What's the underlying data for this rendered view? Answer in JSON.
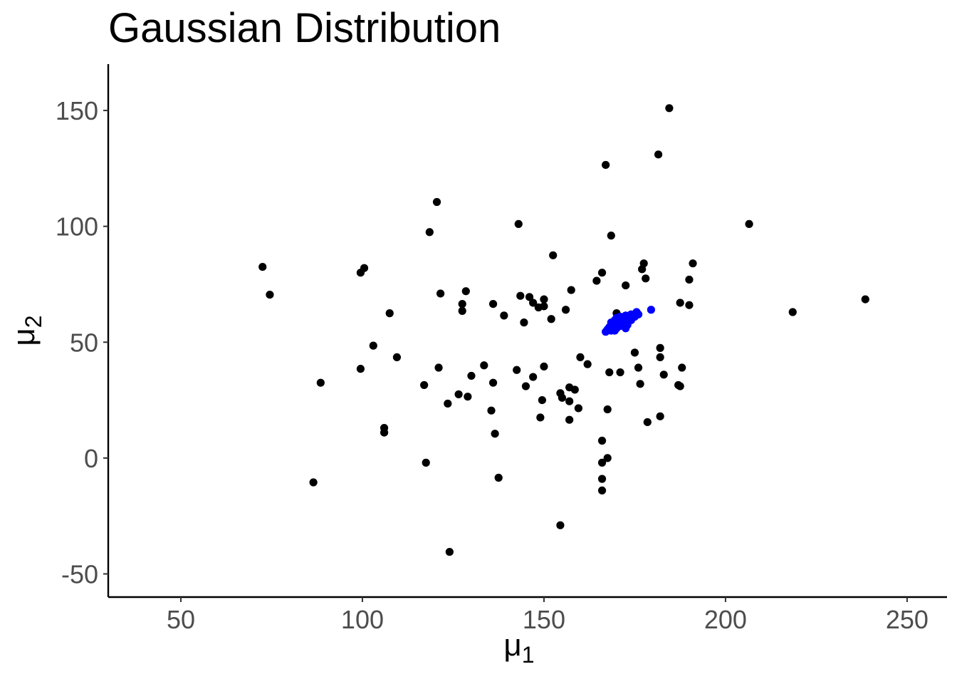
{
  "chart_data": {
    "type": "scatter",
    "title": "Gaussian Distribution",
    "xlabel": {
      "symbol": "μ",
      "subscript": "1"
    },
    "ylabel": {
      "symbol": "μ",
      "subscript": "2"
    },
    "xlim": [
      30,
      261
    ],
    "ylim": [
      -60,
      170
    ],
    "xticks": [
      50,
      100,
      150,
      200,
      250
    ],
    "xtick_labels": [
      "50",
      "100",
      "150",
      "200",
      "250"
    ],
    "yticks": [
      -50,
      0,
      50,
      100,
      150
    ],
    "ytick_labels": [
      "-50",
      "0",
      "50",
      "100",
      "150"
    ],
    "grid": false,
    "legend": "none",
    "series": [
      {
        "color": "#000000",
        "points": [
          [
            184.5,
            151
          ],
          [
            181.5,
            131
          ],
          [
            167,
            126.5
          ],
          [
            120.5,
            110.5
          ],
          [
            143,
            101
          ],
          [
            206.5,
            101
          ],
          [
            118.5,
            97.5
          ],
          [
            168.5,
            96
          ],
          [
            152.5,
            87.5
          ],
          [
            177.5,
            84
          ],
          [
            191,
            84
          ],
          [
            72.5,
            82.5
          ],
          [
            100.5,
            82
          ],
          [
            99.5,
            80
          ],
          [
            177,
            81.5
          ],
          [
            166,
            80
          ],
          [
            178,
            77.5
          ],
          [
            190,
            77
          ],
          [
            164.5,
            76.5
          ],
          [
            172.5,
            74.5
          ],
          [
            157.5,
            72.5
          ],
          [
            128.5,
            72
          ],
          [
            121.5,
            71
          ],
          [
            74.5,
            70.5
          ],
          [
            143.5,
            70
          ],
          [
            146,
            69.5
          ],
          [
            150,
            68.5
          ],
          [
            238.5,
            68.5
          ],
          [
            147,
            67
          ],
          [
            187.5,
            67
          ],
          [
            127.5,
            66.5
          ],
          [
            136,
            66.5
          ],
          [
            148.5,
            65
          ],
          [
            150,
            65.5
          ],
          [
            190,
            66
          ],
          [
            127.5,
            63.5
          ],
          [
            156,
            64
          ],
          [
            107.5,
            62.5
          ],
          [
            218.5,
            63
          ],
          [
            170,
            62.5
          ],
          [
            139,
            61.5
          ],
          [
            152,
            60
          ],
          [
            144.5,
            58.5
          ],
          [
            103,
            48.5
          ],
          [
            182,
            47.5
          ],
          [
            175,
            45.5
          ],
          [
            109.5,
            43.5
          ],
          [
            160,
            43.5
          ],
          [
            182,
            43.5
          ],
          [
            162,
            40.5
          ],
          [
            133.5,
            40
          ],
          [
            150,
            39.5
          ],
          [
            121,
            39
          ],
          [
            99.5,
            38.5
          ],
          [
            142.5,
            38
          ],
          [
            176,
            39
          ],
          [
            188,
            39
          ],
          [
            168,
            37
          ],
          [
            171,
            37
          ],
          [
            130,
            35.5
          ],
          [
            183,
            36
          ],
          [
            147,
            35
          ],
          [
            88.5,
            32.5
          ],
          [
            136,
            32.5
          ],
          [
            117,
            31.5
          ],
          [
            145,
            31
          ],
          [
            176.5,
            32
          ],
          [
            187,
            31.5
          ],
          [
            187.5,
            31
          ],
          [
            157,
            30.5
          ],
          [
            158.5,
            29.5
          ],
          [
            126.5,
            27.5
          ],
          [
            154.5,
            28
          ],
          [
            129,
            26.5
          ],
          [
            149.5,
            25
          ],
          [
            155,
            26
          ],
          [
            157,
            24.5
          ],
          [
            123.5,
            23.5
          ],
          [
            159.5,
            21.5
          ],
          [
            167.5,
            21
          ],
          [
            135.5,
            20.5
          ],
          [
            149,
            17.5
          ],
          [
            157,
            16.5
          ],
          [
            182,
            18
          ],
          [
            178.5,
            15.5
          ],
          [
            106,
            13
          ],
          [
            106,
            11
          ],
          [
            136.5,
            10.5
          ],
          [
            166,
            7.5
          ],
          [
            167.5,
            0
          ],
          [
            117.5,
            -2
          ],
          [
            166,
            -2
          ],
          [
            137.5,
            -8.5
          ],
          [
            166,
            -9
          ],
          [
            86.5,
            -10.5
          ],
          [
            166,
            -14
          ],
          [
            154.5,
            -29
          ],
          [
            124,
            -40.5
          ]
        ]
      },
      {
        "color": "#0000ff",
        "points": [
          [
            179.5,
            64
          ],
          [
            175.5,
            63
          ],
          [
            174,
            62
          ],
          [
            172.5,
            61.5
          ],
          [
            171,
            61
          ],
          [
            170,
            60.5
          ],
          [
            173,
            60
          ],
          [
            169.5,
            59.5
          ],
          [
            171.5,
            59
          ],
          [
            174,
            59.5
          ],
          [
            168.5,
            58.5
          ],
          [
            170.5,
            58
          ],
          [
            172,
            58
          ],
          [
            169,
            57
          ],
          [
            171,
            57
          ],
          [
            168,
            56.5
          ],
          [
            170,
            56
          ],
          [
            172.5,
            56
          ],
          [
            167.5,
            55.5
          ],
          [
            169.5,
            55
          ],
          [
            167,
            54.5
          ],
          [
            168.5,
            55
          ],
          [
            173,
            57.5
          ],
          [
            175,
            61
          ],
          [
            176,
            62
          ]
        ]
      }
    ]
  }
}
